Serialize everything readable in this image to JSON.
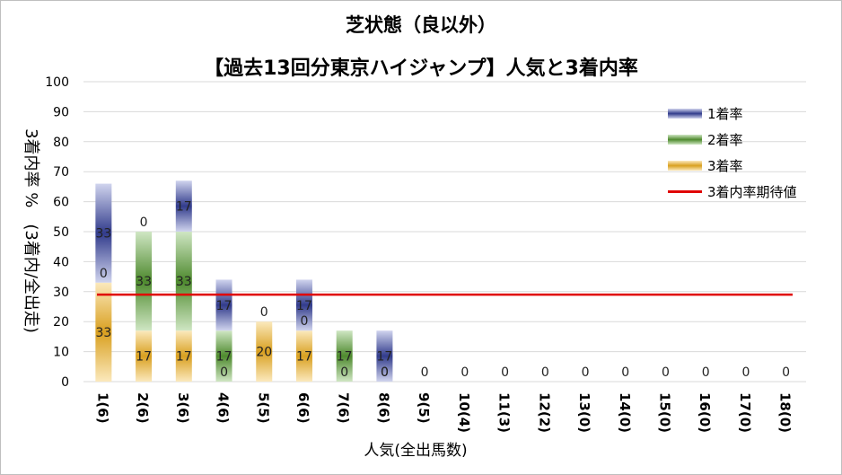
{
  "chart_data": {
    "type": "bar",
    "title": "芝状態（良以外）",
    "subtitle": "【過去13回分東京ハイジャンプ】人気と3着内率",
    "xlabel": "人気(全出馬数)",
    "ylabel": "3着内率 %　(3着内/全出走)",
    "ylim": [
      0,
      100
    ],
    "yticks": [
      "0",
      "10",
      "20",
      "30",
      "40",
      "50",
      "60",
      "70",
      "80",
      "90",
      "100"
    ],
    "categories": [
      "1(6)",
      "2(6)",
      "3(6)",
      "4(6)",
      "5(5)",
      "6(6)",
      "7(6)",
      "8(6)",
      "9(5)",
      "10(4)",
      "11(3)",
      "12(2)",
      "13(0)",
      "14(0)",
      "15(0)",
      "16(0)",
      "17(0)",
      "18(0)"
    ],
    "stacked": true,
    "series": [
      {
        "name": "3着率",
        "color": "#d9a020",
        "values": [
          33,
          17,
          17,
          0,
          20,
          17,
          0,
          0,
          0,
          0,
          0,
          0,
          0,
          0,
          0,
          0,
          0,
          0
        ],
        "labels": [
          "33",
          "17",
          "17",
          "0",
          "20",
          "17",
          "0",
          "0",
          "",
          "",
          "",
          "",
          "",
          "",
          "",
          "",
          "",
          ""
        ]
      },
      {
        "name": "2着率",
        "color": "#4e8a2e",
        "values": [
          0,
          33,
          33,
          17,
          0,
          0,
          17,
          0,
          0,
          0,
          0,
          0,
          0,
          0,
          0,
          0,
          0,
          0
        ],
        "labels": [
          "0",
          "33",
          "33",
          "17",
          "0",
          "0",
          "17",
          "0",
          "",
          "",
          "",
          "",
          "",
          "",
          "",
          "",
          "",
          ""
        ]
      },
      {
        "name": "1着率",
        "color": "#323c8c",
        "values": [
          33,
          0,
          17,
          17,
          0,
          17,
          0,
          17,
          0,
          0,
          0,
          0,
          0,
          0,
          0,
          0,
          0,
          0
        ],
        "labels": [
          "33",
          "0",
          "17",
          "17",
          "",
          "17",
          "",
          "17",
          "0",
          "0",
          "0",
          "0",
          "0",
          "0",
          "0",
          "0",
          "0",
          "0"
        ]
      }
    ],
    "reference_line": {
      "name": "3着内率期待値",
      "value": 29,
      "color": "#e00000"
    },
    "legend": [
      "1着率",
      "2着率",
      "3着率",
      "3着内率期待値"
    ],
    "legend_position": "right",
    "grid": true
  }
}
